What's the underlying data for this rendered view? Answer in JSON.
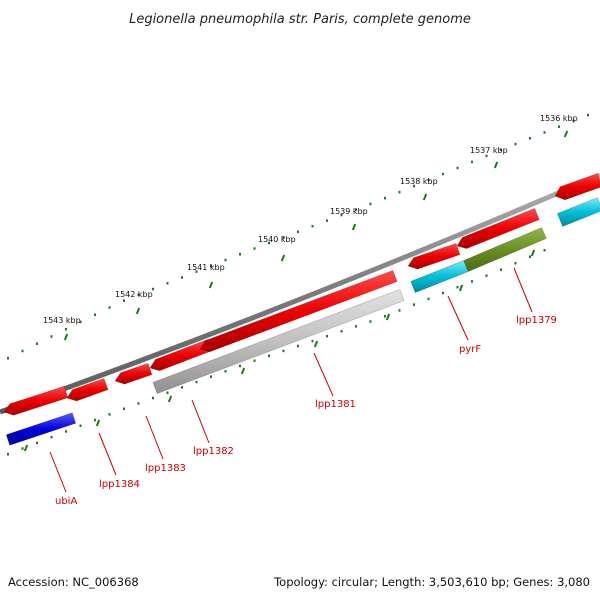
{
  "title": "Legionella pneumophila str. Paris, complete genome",
  "accession": "Accession: NC_006368",
  "summary": "Topology: circular; Length: 3,503,610 bp; Genes: 3,080",
  "kbp_labels": [
    "1536 kbp",
    "1537 kbp",
    "1538 kbp",
    "1539 kbp",
    "1540 kbp",
    "1541 kbp",
    "1542 kbp",
    "1543 kbp"
  ],
  "gene_labels": [
    "lpp1379",
    "pyrF",
    "lpp1381",
    "lpp1382",
    "lpp1383",
    "lpp1384",
    "ubiA"
  ],
  "colors": {
    "backbone": "#888888",
    "cds": "#ee0000",
    "tick": "#1a7a1a",
    "label": "#cc0000",
    "gray_feature": "#bbbbbb",
    "olive_feature": "#6b8e23",
    "cyan_feature": "#00bfd8",
    "blue_feature": "#0000dd"
  }
}
